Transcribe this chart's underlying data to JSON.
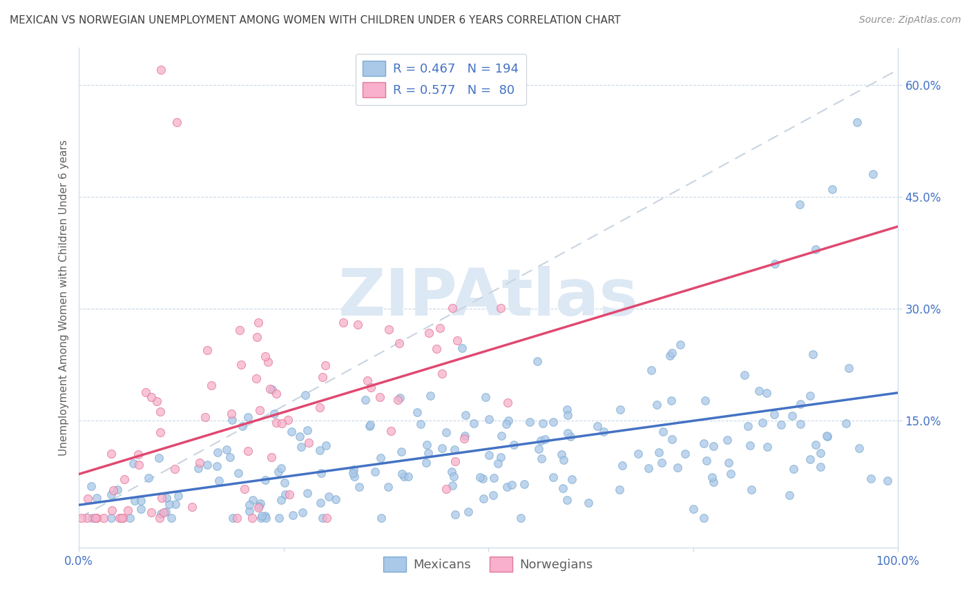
{
  "title": "MEXICAN VS NORWEGIAN UNEMPLOYMENT AMONG WOMEN WITH CHILDREN UNDER 6 YEARS CORRELATION CHART",
  "source": "Source: ZipAtlas.com",
  "ylabel": "Unemployment Among Women with Children Under 6 years",
  "legend_mexicans": "Mexicans",
  "legend_norwegians": "Norwegians",
  "r_mexicans": 0.467,
  "n_mexicans": 194,
  "r_norwegians": 0.577,
  "n_norwegians": 80,
  "color_mexicans": "#aac8e8",
  "color_mexicans_edge": "#7aaad0",
  "color_norwegians": "#f8b0cc",
  "color_norwegians_edge": "#e07898",
  "color_trend_mexicans": "#4472c4",
  "color_trend_mexicans_dashed": "#c8d4e0",
  "color_trend_norwegians": "#e04870",
  "color_title": "#404040",
  "color_source": "#909090",
  "color_rn_values": "#4472c4",
  "xlim": [
    0.0,
    1.0
  ],
  "ylim": [
    -0.02,
    0.65
  ],
  "yticks": [
    0.15,
    0.3,
    0.45,
    0.6
  ],
  "ytick_labels": [
    "15.0%",
    "30.0%",
    "45.0%",
    "60.0%"
  ],
  "watermark_text": "ZIPAtlas",
  "watermark_color": "#dce8f4"
}
